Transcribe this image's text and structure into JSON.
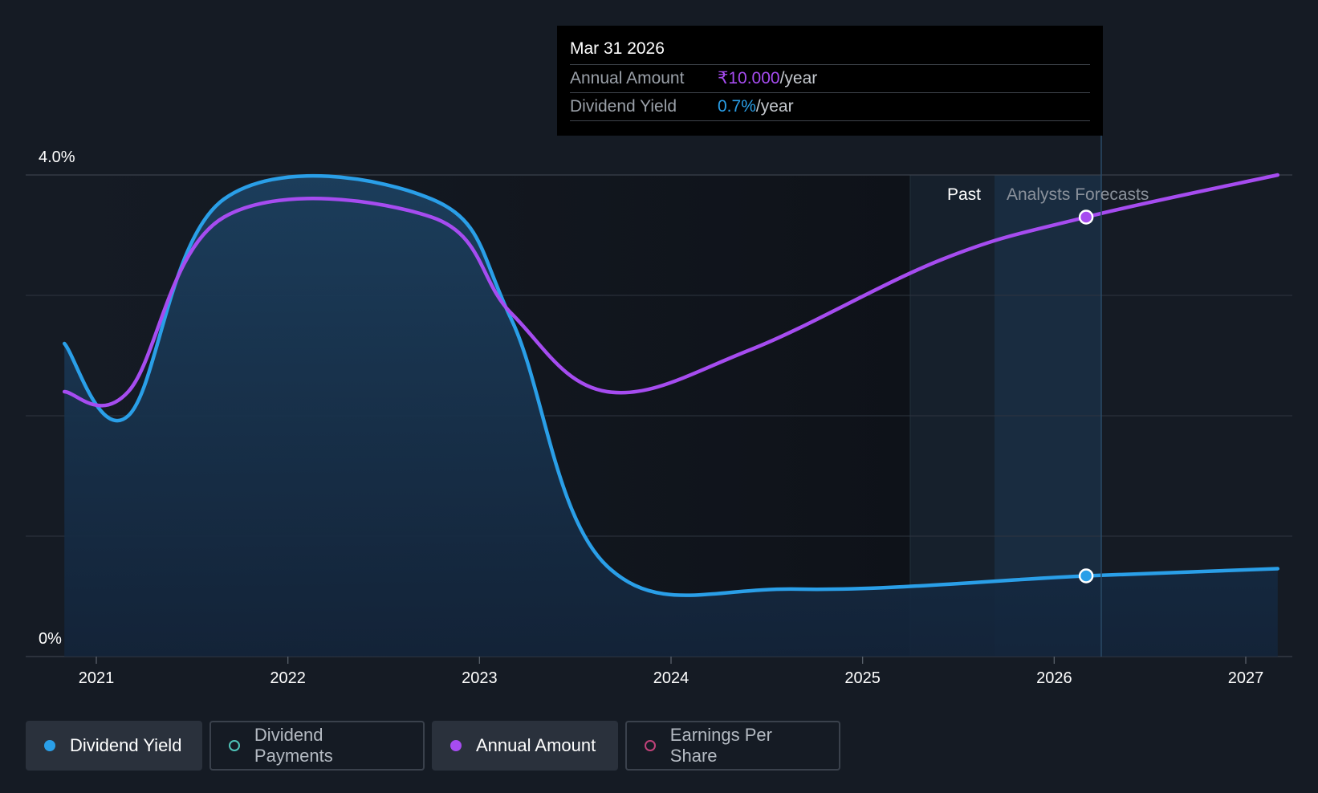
{
  "chart_data": {
    "type": "line",
    "x_ticks": [
      "2021",
      "2022",
      "2023",
      "2024",
      "2025",
      "2026",
      "2027"
    ],
    "y_ticks": [
      "4.0%",
      "0%"
    ],
    "ylim": [
      0,
      4.0
    ],
    "grid": true,
    "regions": [
      {
        "label": "Past"
      },
      {
        "label": "Analysts Forecasts"
      }
    ],
    "series": [
      {
        "name": "Dividend Yield",
        "color": "#2a9fe8",
        "points": [
          [
            "2020-11",
            2.6
          ],
          [
            "2021-03",
            2.0
          ],
          [
            "2021-09",
            3.8
          ],
          [
            "2022-10",
            3.8
          ],
          [
            "2023-03",
            2.8
          ],
          [
            "2023-09",
            0.75
          ],
          [
            "2024-09",
            0.56
          ],
          [
            "2026-03",
            0.67
          ],
          [
            "2027-03",
            0.73
          ]
        ]
      },
      {
        "name": "Annual Amount",
        "color": "#a64cf0",
        "points": [
          [
            "2020-11",
            2.2
          ],
          [
            "2021-03",
            2.2
          ],
          [
            "2021-09",
            3.65
          ],
          [
            "2022-10",
            3.65
          ],
          [
            "2023-03",
            2.85
          ],
          [
            "2023-09",
            2.2
          ],
          [
            "2024-06",
            2.55
          ],
          [
            "2025-06",
            3.3
          ],
          [
            "2026-03",
            3.65
          ],
          [
            "2027-03",
            4.0
          ]
        ]
      }
    ],
    "tooltip": {
      "date": "Mar 31 2026",
      "rows": [
        {
          "label": "Annual Amount",
          "value": "₹10.000",
          "suffix": "/year"
        },
        {
          "label": "Dividend Yield",
          "value": "0.7%",
          "suffix": "/year"
        }
      ]
    }
  },
  "legend": [
    {
      "label": "Dividend Yield",
      "state": "active",
      "color": "#2a9fe8",
      "marker": "filled"
    },
    {
      "label": "Dividend Payments",
      "state": "inactive",
      "color": "#4fc3b8",
      "marker": "ring"
    },
    {
      "label": "Annual Amount",
      "state": "active",
      "color": "#a64cf0",
      "marker": "filled"
    },
    {
      "label": "Earnings Per Share",
      "state": "inactive",
      "color": "#c0427a",
      "marker": "ring"
    }
  ]
}
